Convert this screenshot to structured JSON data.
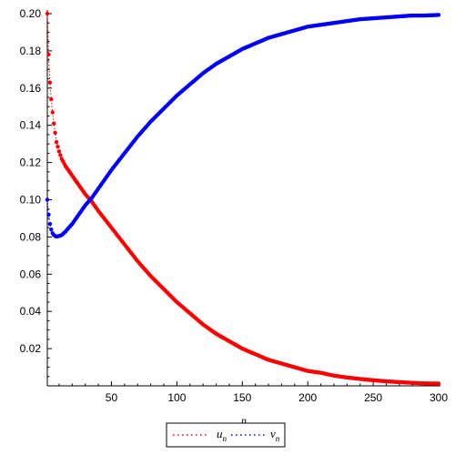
{
  "chart_data": {
    "type": "scatter",
    "title": "",
    "xlabel": "n",
    "ylabel": "",
    "xlim": [
      1,
      300
    ],
    "ylim": [
      0,
      0.2
    ],
    "grid": false,
    "legend_position": "bottom",
    "x_ticks": [
      50,
      100,
      150,
      200,
      250,
      300
    ],
    "y_ticks": [
      0.02,
      0.04,
      0.06,
      0.08,
      0.1,
      0.12,
      0.14,
      0.16,
      0.18,
      0.2
    ],
    "x_tick_labels": [
      "50",
      "100",
      "150",
      "200",
      "250",
      "300"
    ],
    "y_tick_labels": [
      "0.02",
      "0.04",
      "0.06",
      "0.08",
      "0.10",
      "0.12",
      "0.14",
      "0.16",
      "0.18",
      "0.20"
    ],
    "series": [
      {
        "name": "u",
        "subscript": "n",
        "color": "#ff0000",
        "points": [
          [
            1,
            0.2
          ],
          [
            2,
            0.178
          ],
          [
            3,
            0.163
          ],
          [
            4,
            0.154
          ],
          [
            5,
            0.147
          ],
          [
            6,
            0.141
          ],
          [
            7,
            0.136
          ],
          [
            8,
            0.131
          ],
          [
            10,
            0.126
          ],
          [
            12,
            0.122
          ],
          [
            15,
            0.118
          ],
          [
            20,
            0.113
          ],
          [
            25,
            0.108
          ],
          [
            30,
            0.103
          ],
          [
            35,
            0.099
          ],
          [
            40,
            0.094
          ],
          [
            50,
            0.085
          ],
          [
            60,
            0.076
          ],
          [
            70,
            0.067
          ],
          [
            80,
            0.059
          ],
          [
            90,
            0.052
          ],
          [
            100,
            0.045
          ],
          [
            110,
            0.039
          ],
          [
            120,
            0.033
          ],
          [
            130,
            0.028
          ],
          [
            140,
            0.024
          ],
          [
            150,
            0.02
          ],
          [
            160,
            0.017
          ],
          [
            170,
            0.014
          ],
          [
            180,
            0.012
          ],
          [
            190,
            0.01
          ],
          [
            200,
            0.008
          ],
          [
            210,
            0.007
          ],
          [
            220,
            0.0055
          ],
          [
            230,
            0.0045
          ],
          [
            240,
            0.0037
          ],
          [
            250,
            0.003
          ],
          [
            260,
            0.0024
          ],
          [
            270,
            0.002
          ],
          [
            280,
            0.0016
          ],
          [
            290,
            0.0013
          ],
          [
            300,
            0.0012
          ]
        ]
      },
      {
        "name": "v",
        "subscript": "n",
        "color": "#0000ff",
        "points": [
          [
            1,
            0.1
          ],
          [
            2,
            0.092
          ],
          [
            3,
            0.087
          ],
          [
            4,
            0.084
          ],
          [
            5,
            0.082
          ],
          [
            6,
            0.081
          ],
          [
            7,
            0.0805
          ],
          [
            8,
            0.0802
          ],
          [
            10,
            0.0805
          ],
          [
            12,
            0.081
          ],
          [
            15,
            0.083
          ],
          [
            20,
            0.087
          ],
          [
            25,
            0.092
          ],
          [
            30,
            0.097
          ],
          [
            35,
            0.101
          ],
          [
            40,
            0.106
          ],
          [
            50,
            0.116
          ],
          [
            60,
            0.125
          ],
          [
            70,
            0.134
          ],
          [
            80,
            0.142
          ],
          [
            90,
            0.149
          ],
          [
            100,
            0.156
          ],
          [
            110,
            0.162
          ],
          [
            120,
            0.168
          ],
          [
            130,
            0.173
          ],
          [
            140,
            0.177
          ],
          [
            150,
            0.181
          ],
          [
            160,
            0.184
          ],
          [
            170,
            0.187
          ],
          [
            180,
            0.189
          ],
          [
            190,
            0.191
          ],
          [
            200,
            0.193
          ],
          [
            210,
            0.194
          ],
          [
            220,
            0.195
          ],
          [
            230,
            0.196
          ],
          [
            240,
            0.197
          ],
          [
            250,
            0.1975
          ],
          [
            260,
            0.198
          ],
          [
            270,
            0.1985
          ],
          [
            280,
            0.199
          ],
          [
            290,
            0.199
          ],
          [
            300,
            0.1993
          ]
        ]
      }
    ]
  }
}
